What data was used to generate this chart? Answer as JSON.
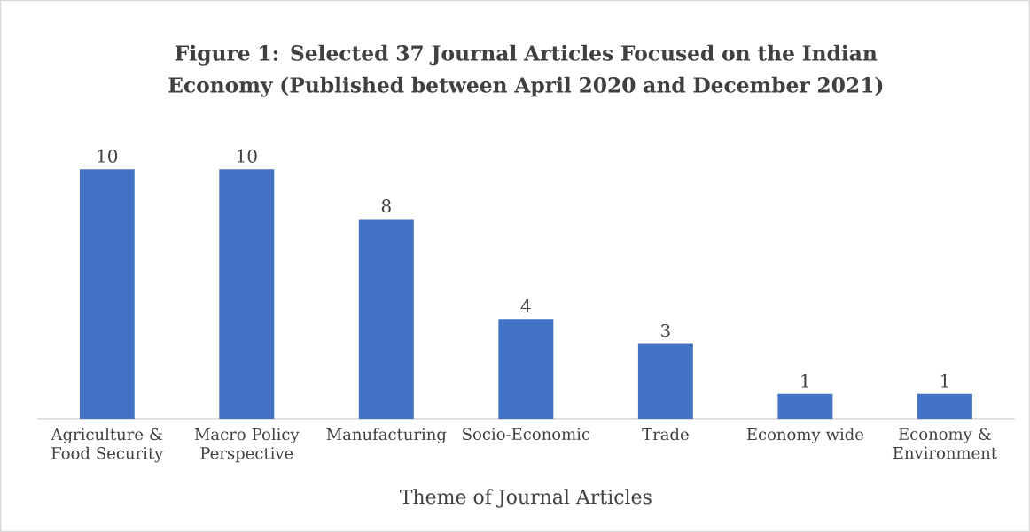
{
  "chart_data": {
    "type": "bar",
    "title": "Figure 1: Selected 37 Journal Articles Focused on the Indian Economy (Published between April 2020 and December 2021)",
    "xlabel": "Theme of Journal Articles",
    "categories": [
      "Agriculture & Food Security",
      "Macro Policy Perspective",
      "Manufacturing",
      "Socio-Economic",
      "Trade",
      "Economy wide",
      "Economy & Environment"
    ],
    "values": [
      10,
      10,
      8,
      4,
      3,
      1,
      1
    ],
    "color": "#4472c4",
    "data_labels": true
  }
}
